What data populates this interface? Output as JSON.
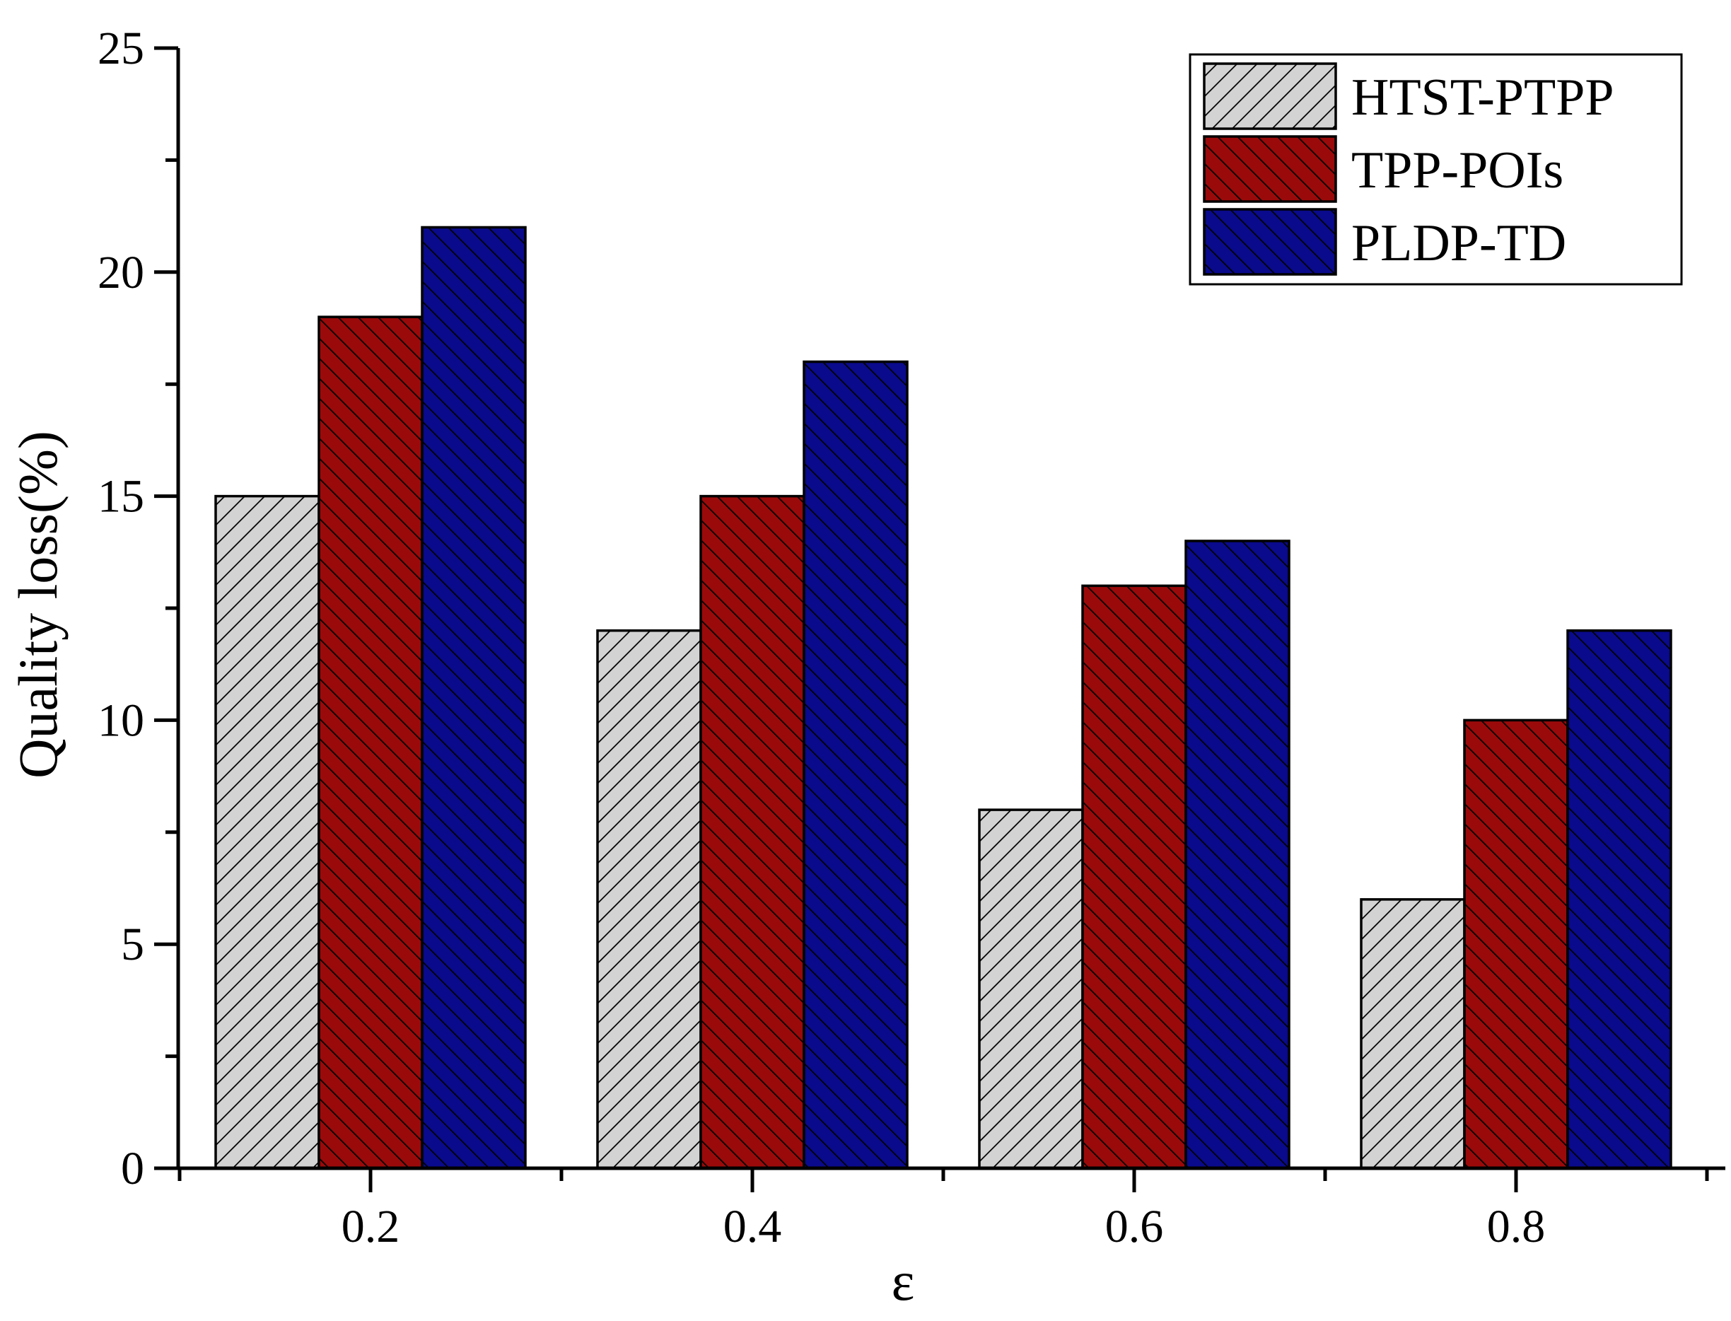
{
  "chart_data": {
    "type": "bar",
    "title": "",
    "xlabel": "ε",
    "ylabel": "Quality loss(%)",
    "categories": [
      "0.2",
      "0.4",
      "0.6",
      "0.8"
    ],
    "ylim": [
      0,
      25
    ],
    "yticks": [
      0,
      5,
      10,
      15,
      20,
      25
    ],
    "grid": false,
    "legend_position": "top-right",
    "series": [
      {
        "name": "HTST-PTPP",
        "values": [
          15,
          12,
          8,
          6
        ],
        "color": "#d3d3d3",
        "hatch": "forward-diagonal"
      },
      {
        "name": "TPP-POIs",
        "values": [
          19,
          15,
          13,
          10
        ],
        "color": "#9b0a0a",
        "hatch": "back-diagonal"
      },
      {
        "name": "PLDP-TD",
        "values": [
          21,
          18,
          14,
          12
        ],
        "color": "#0a0a8c",
        "hatch": "back-diagonal"
      }
    ]
  }
}
